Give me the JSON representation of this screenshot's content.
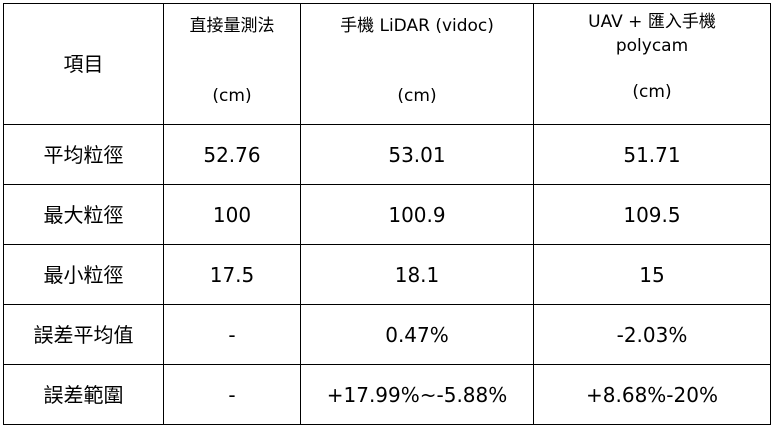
{
  "table": {
    "header": {
      "item_label": "項目",
      "columns": [
        {
          "title": "直接量測法",
          "unit": "(cm)"
        },
        {
          "title": "手機 LiDAR (vidoc)",
          "unit": "(cm)"
        },
        {
          "title_line1": "UAV +  匯入手機",
          "title_line2": "polycam",
          "unit": "(cm)"
        }
      ]
    },
    "rows": [
      {
        "label": "平均粒徑",
        "values": [
          "52.76",
          "53.01",
          "51.71"
        ]
      },
      {
        "label": "最大粒徑",
        "values": [
          "100",
          "100.9",
          "109.5"
        ]
      },
      {
        "label": "最小粒徑",
        "values": [
          "17.5",
          "18.1",
          "15"
        ]
      },
      {
        "label": "誤差平均值",
        "values": [
          "-",
          "0.47%",
          "-2.03%"
        ]
      },
      {
        "label": "誤差範圍",
        "values": [
          "-",
          "+17.99%~-5.88%",
          "+8.68%-20%"
        ]
      }
    ]
  }
}
